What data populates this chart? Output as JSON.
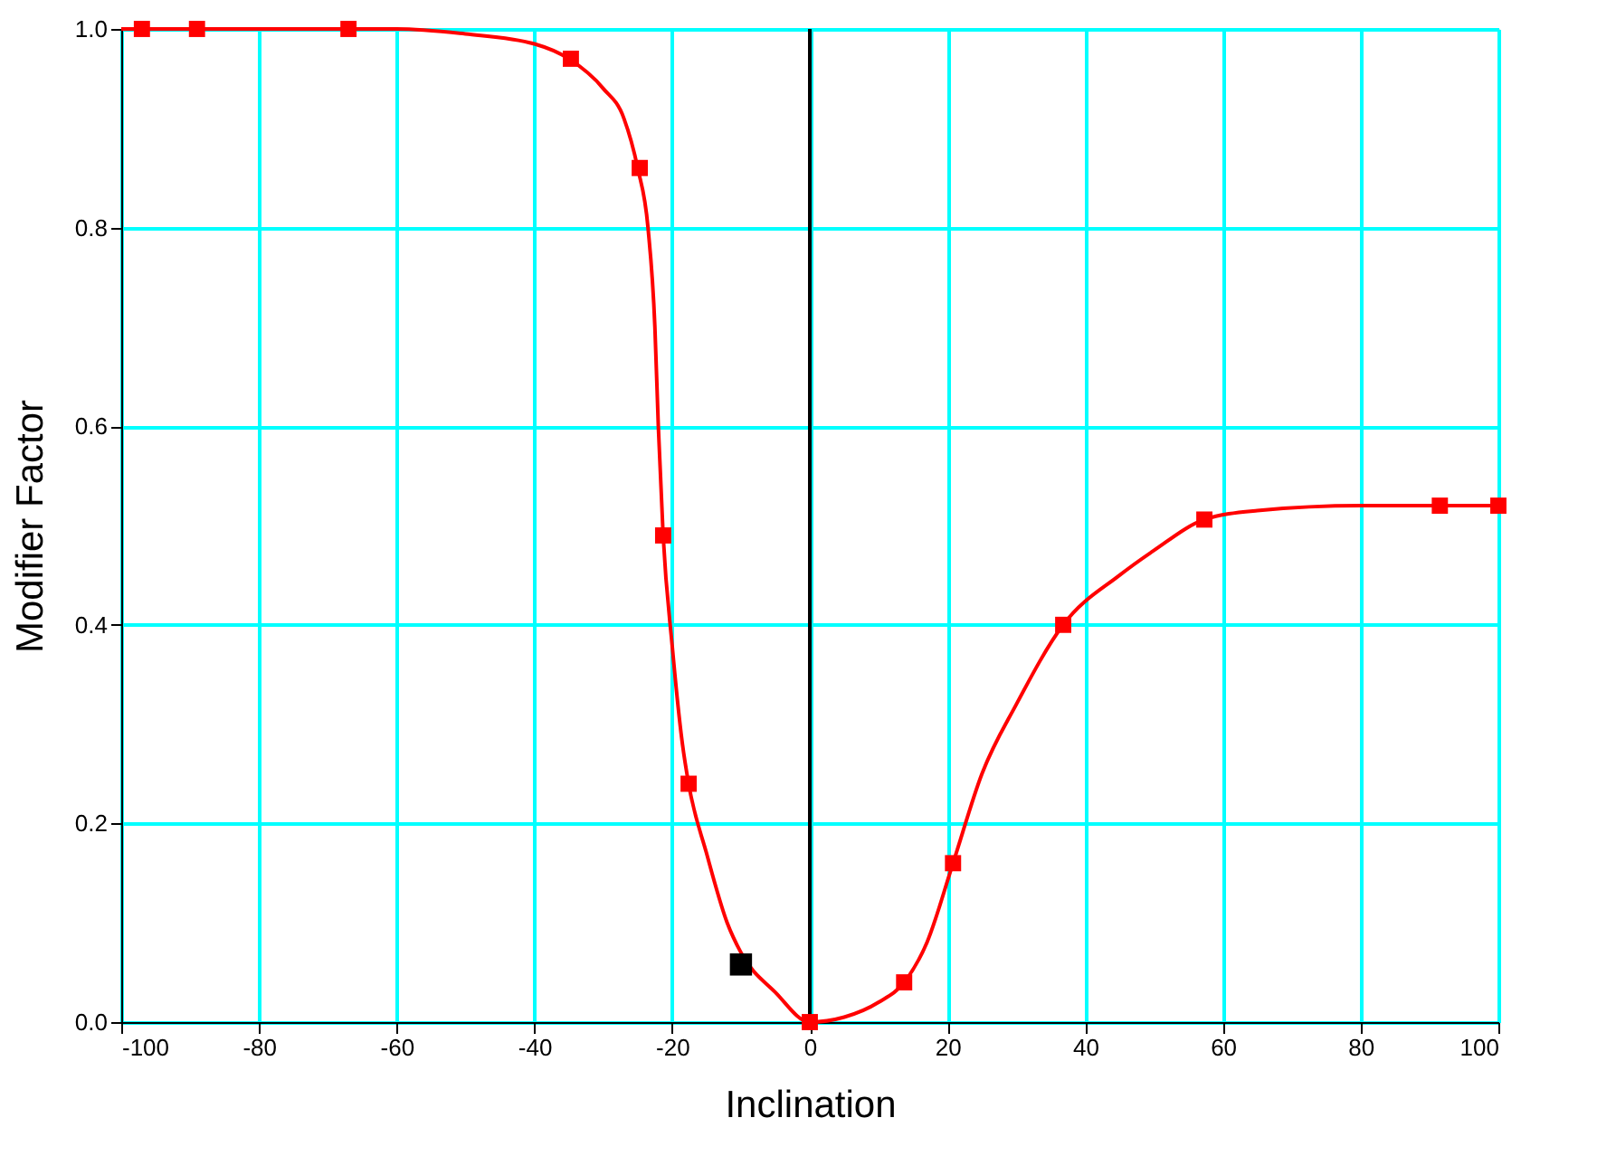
{
  "chart_data": {
    "type": "line",
    "xlabel": "Inclination",
    "ylabel": "Modifier Factor",
    "xlim": [
      -100,
      100
    ],
    "xticks": [
      -100,
      -80,
      -60,
      -40,
      -20,
      0,
      20,
      40,
      60,
      80,
      100
    ],
    "ylim": [
      0,
      1
    ],
    "yticks": [
      {
        "value": 0,
        "label": "0.0"
      },
      {
        "value": 0.2,
        "label": "0.2"
      },
      {
        "value": 0.4,
        "label": "0.4"
      },
      {
        "value": 0.6,
        "label": "0.6"
      },
      {
        "value": 0.8,
        "label": "0.8"
      },
      {
        "value": 1,
        "label": "1.0"
      }
    ],
    "grid": true,
    "ref_lines": [
      {
        "axis": "x",
        "value": 0,
        "color": "#000000"
      }
    ],
    "series": [
      {
        "color": "#ff0000",
        "marker": "none",
        "x": [
          -100,
          -80,
          -60,
          -50,
          -40,
          -35,
          -30,
          -27,
          -25,
          -23.5,
          -22.5,
          -22,
          -21.3,
          -20,
          -18.5,
          -17.6,
          -15,
          -12,
          -10,
          -5,
          0,
          5,
          10,
          13.7,
          17,
          20.8,
          25,
          30,
          36.8,
          45,
          50,
          57.3,
          65,
          80,
          100
        ],
        "values": [
          1,
          1,
          1,
          0.995,
          0.985,
          0.97,
          0.94,
          0.91,
          0.86,
          0.8,
          0.7,
          0.6,
          0.49,
          0.38,
          0.28,
          0.24,
          0.17,
          0.1,
          0.07,
          0.03,
          0,
          0.005,
          0.02,
          0.04,
          0.08,
          0.16,
          0.25,
          0.32,
          0.4,
          0.45,
          0.475,
          0.506,
          0.515,
          0.52,
          0.52
        ]
      },
      {
        "type": "scatter",
        "color": "#ff0000",
        "marker": "square",
        "x": [
          -97,
          -89,
          -67,
          -34.7,
          -24.7,
          -21.3,
          -17.6,
          0,
          13.7,
          20.8,
          36.8,
          57.3,
          91.5,
          100
        ],
        "values": [
          1,
          1,
          1,
          0.97,
          0.86,
          0.49,
          0.24,
          0,
          0.04,
          0.16,
          0.4,
          0.506,
          0.52,
          0.52
        ]
      },
      {
        "type": "scatter",
        "color": "#000000",
        "marker": "square",
        "x": [
          -10
        ],
        "values": [
          0.058
        ]
      }
    ]
  }
}
